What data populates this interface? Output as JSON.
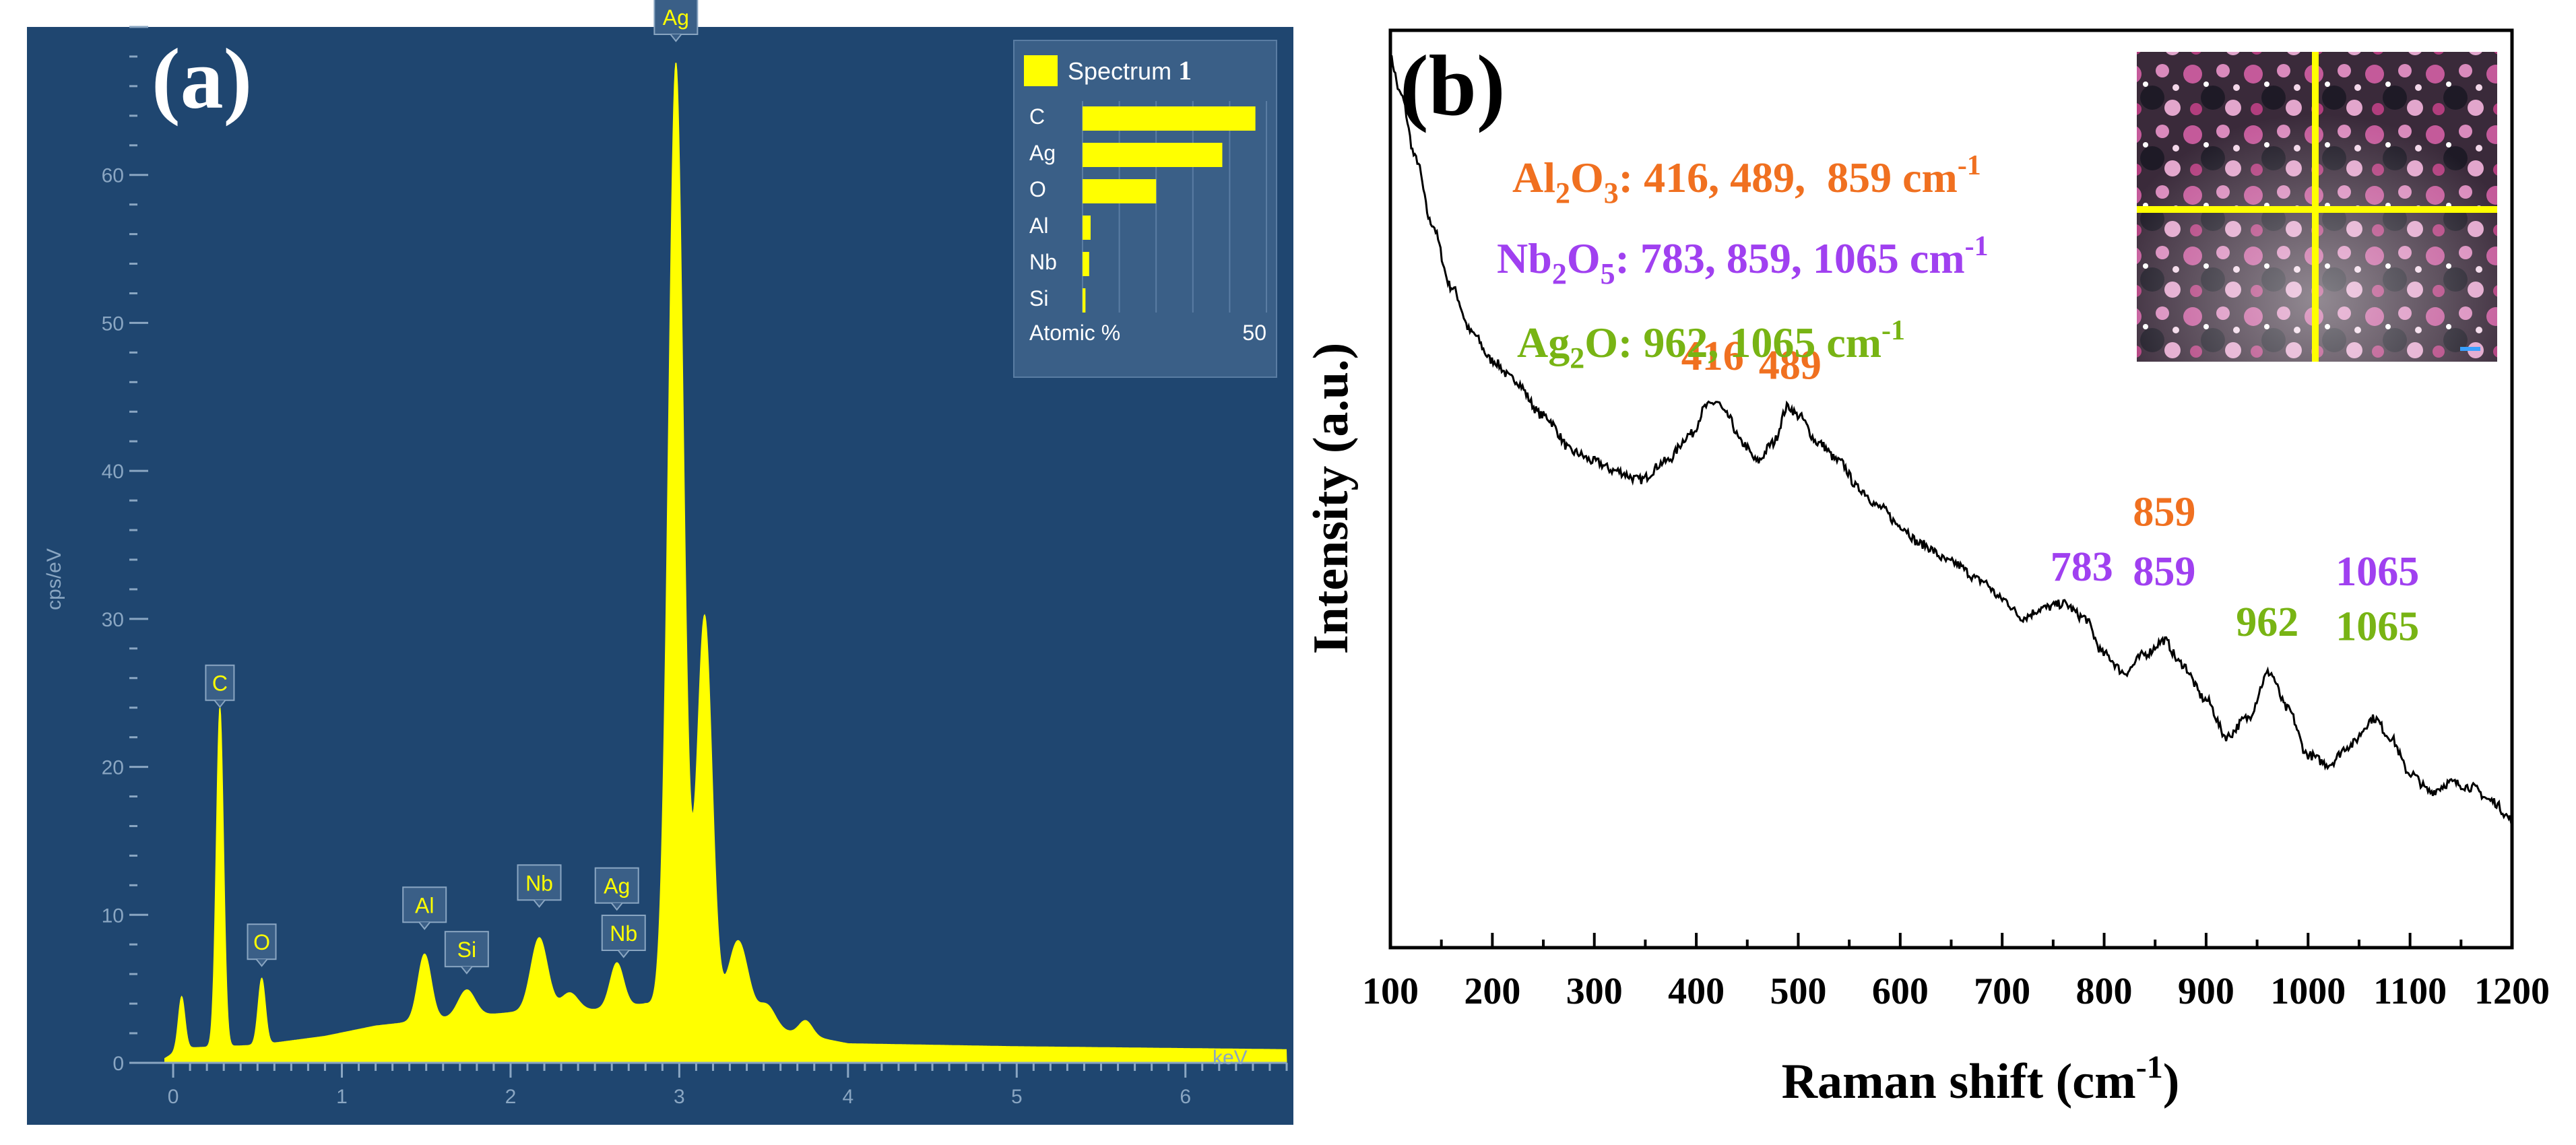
{
  "colors": {
    "eds_bg": "#1f4670",
    "eds_axis": "#8aa6c2",
    "eds_spectrum": "#ffff00",
    "raman_line": "#000000",
    "al2o3": "#f07020",
    "nb2o5": "#a040f0",
    "ag2o": "#78b414"
  },
  "chart_data": [
    {
      "panel": "(a)",
      "type": "area",
      "xlabel_unit": "keV",
      "ylabel": "cps/eV",
      "xlim": [
        -0.1,
        6.6
      ],
      "ylim": [
        0,
        70
      ],
      "x_ticks": [
        0,
        1,
        2,
        3,
        4,
        5,
        6
      ],
      "y_ticks": [
        0,
        10,
        20,
        30,
        40,
        50,
        60
      ],
      "baseline": [
        [
          -0.05,
          0.3
        ],
        [
          0.05,
          1.0
        ],
        [
          0.5,
          1.2
        ],
        [
          0.9,
          1.8
        ],
        [
          1.2,
          2.5
        ],
        [
          1.6,
          3.0
        ],
        [
          2.0,
          3.4
        ],
        [
          2.5,
          3.6
        ],
        [
          2.8,
          4.0
        ],
        [
          3.6,
          2.2
        ],
        [
          4.0,
          1.3
        ],
        [
          5.0,
          1.1
        ],
        [
          6.6,
          0.9
        ]
      ],
      "peaks": [
        {
          "center": 0.05,
          "height": 3.5,
          "width": 0.02
        },
        {
          "center": 0.277,
          "height": 23.0,
          "width": 0.022
        },
        {
          "center": 0.525,
          "height": 4.5,
          "width": 0.022
        },
        {
          "center": 1.49,
          "height": 4.5,
          "width": 0.04
        },
        {
          "center": 1.74,
          "height": 1.8,
          "width": 0.05
        },
        {
          "center": 2.17,
          "height": 5.0,
          "width": 0.05
        },
        {
          "center": 2.35,
          "height": 1.2,
          "width": 0.05
        },
        {
          "center": 2.63,
          "height": 3.0,
          "width": 0.04
        },
        {
          "center": 2.98,
          "height": 64.0,
          "width": 0.045
        },
        {
          "center": 3.15,
          "height": 27.0,
          "width": 0.045
        },
        {
          "center": 3.35,
          "height": 5.5,
          "width": 0.06
        },
        {
          "center": 3.52,
          "height": 1.5,
          "width": 0.05
        },
        {
          "center": 3.75,
          "height": 1.0,
          "width": 0.04
        }
      ],
      "peak_labels": [
        {
          "label": "C",
          "x": 0.277,
          "y": 24.5
        },
        {
          "label": "O",
          "x": 0.525,
          "y": 7.0
        },
        {
          "label": "Al",
          "x": 1.49,
          "y": 9.5
        },
        {
          "label": "Si",
          "x": 1.74,
          "y": 6.5
        },
        {
          "label": "Nb",
          "x": 2.17,
          "y": 11.0
        },
        {
          "label": "Ag",
          "x": 2.63,
          "y": 10.8
        },
        {
          "label": "Nb",
          "x": 2.67,
          "y": 7.6
        },
        {
          "label": "Ag",
          "x": 2.98,
          "y": 69.5
        }
      ],
      "legend": {
        "title_text": "Spectrum",
        "title_number": "1",
        "items": [
          {
            "label": "C",
            "value": 47
          },
          {
            "label": "Ag",
            "value": 38
          },
          {
            "label": "O",
            "value": 20
          },
          {
            "label": "Al",
            "value": 2.2
          },
          {
            "label": "Nb",
            "value": 1.8
          },
          {
            "label": "Si",
            "value": 0.8
          }
        ],
        "axis_label": "Atomic %",
        "axis_max": "50",
        "placement": "top-right"
      }
    },
    {
      "panel": "(b)",
      "type": "line",
      "title": "",
      "xlabel": "Raman shift (cm",
      "xlabel_sup": "-1",
      "xlabel_end": ")",
      "ylabel": "Intensity (a.u.)",
      "xlim": [
        100,
        1200
      ],
      "ylim": [
        0,
        100
      ],
      "x_ticks": [
        100,
        200,
        300,
        400,
        500,
        600,
        700,
        800,
        900,
        1000,
        1100,
        1200
      ],
      "series": [
        {
          "name": "Raman spectrum",
          "points": [
            [
              100,
              97
            ],
            [
              110,
              93
            ],
            [
              125,
              86
            ],
            [
              140,
              79
            ],
            [
              160,
              72
            ],
            [
              180,
              67
            ],
            [
              200,
              64
            ],
            [
              220,
              62
            ],
            [
              250,
              58
            ],
            [
              280,
              54
            ],
            [
              300,
              53
            ],
            [
              320,
              52
            ],
            [
              345,
              51
            ],
            [
              370,
              53
            ],
            [
              395,
              56
            ],
            [
              410,
              59
            ],
            [
              420,
              59.5
            ],
            [
              430,
              58
            ],
            [
              445,
              55
            ],
            [
              460,
              53
            ],
            [
              475,
              55
            ],
            [
              490,
              59
            ],
            [
              500,
              58
            ],
            [
              520,
              55
            ],
            [
              540,
              53
            ],
            [
              560,
              50
            ],
            [
              580,
              48
            ],
            [
              600,
              46
            ],
            [
              620,
              44
            ],
            [
              650,
              42
            ],
            [
              680,
              40
            ],
            [
              700,
              38
            ],
            [
              720,
              36
            ],
            [
              740,
              37
            ],
            [
              760,
              37.5
            ],
            [
              780,
              36
            ],
            [
              800,
              32
            ],
            [
              820,
              30
            ],
            [
              840,
              32
            ],
            [
              859,
              33.5
            ],
            [
              875,
              31
            ],
            [
              900,
              27
            ],
            [
              920,
              23
            ],
            [
              940,
              25
            ],
            [
              962,
              30
            ],
            [
              980,
              26
            ],
            [
              1000,
              21
            ],
            [
              1020,
              20
            ],
            [
              1040,
              22
            ],
            [
              1065,
              25
            ],
            [
              1080,
              23
            ],
            [
              1100,
              19
            ],
            [
              1120,
              17
            ],
            [
              1140,
              18
            ],
            [
              1160,
              17.5
            ],
            [
              1180,
              16
            ],
            [
              1200,
              14
            ]
          ]
        }
      ],
      "noise_amplitude": 0.5,
      "annotations": [
        {
          "text": "416",
          "x": 416,
          "y": 63,
          "color": "al2o3"
        },
        {
          "text": "489",
          "x": 492,
          "y": 62,
          "color": "al2o3"
        },
        {
          "text": "783",
          "x": 778,
          "y": 40,
          "color": "nb2o5"
        },
        {
          "text": "859",
          "x": 859,
          "y": 46,
          "color": "al2o3"
        },
        {
          "text": "859",
          "x": 859,
          "y": 39.5,
          "color": "nb2o5"
        },
        {
          "text": "962",
          "x": 960,
          "y": 34,
          "color": "ag2o"
        },
        {
          "text": "1065",
          "x": 1068,
          "y": 39.5,
          "color": "nb2o5"
        },
        {
          "text": "1065",
          "x": 1068,
          "y": 33.5,
          "color": "ag2o"
        }
      ],
      "legend_lines": [
        {
          "formula": [
            [
              "Al",
              "normal"
            ],
            [
              "2",
              "sub"
            ],
            [
              "O",
              "normal"
            ],
            [
              "3",
              "sub"
            ]
          ],
          "text": ": 416, 489,  859 cm",
          "sup": "-1",
          "color": "al2o3"
        },
        {
          "formula": [
            [
              "Nb",
              "normal"
            ],
            [
              "2",
              "sub"
            ],
            [
              "O",
              "normal"
            ],
            [
              "5",
              "sub"
            ]
          ],
          "text": ": 783, 859, 1065 cm",
          "sup": "-1",
          "color": "nb2o5"
        },
        {
          "formula": [
            [
              "Ag",
              "normal"
            ],
            [
              "2",
              "sub"
            ],
            [
              "O",
              "normal"
            ]
          ],
          "text": ": 962, 1065 cm",
          "sup": "-1",
          "color": "ag2o"
        }
      ]
    }
  ]
}
